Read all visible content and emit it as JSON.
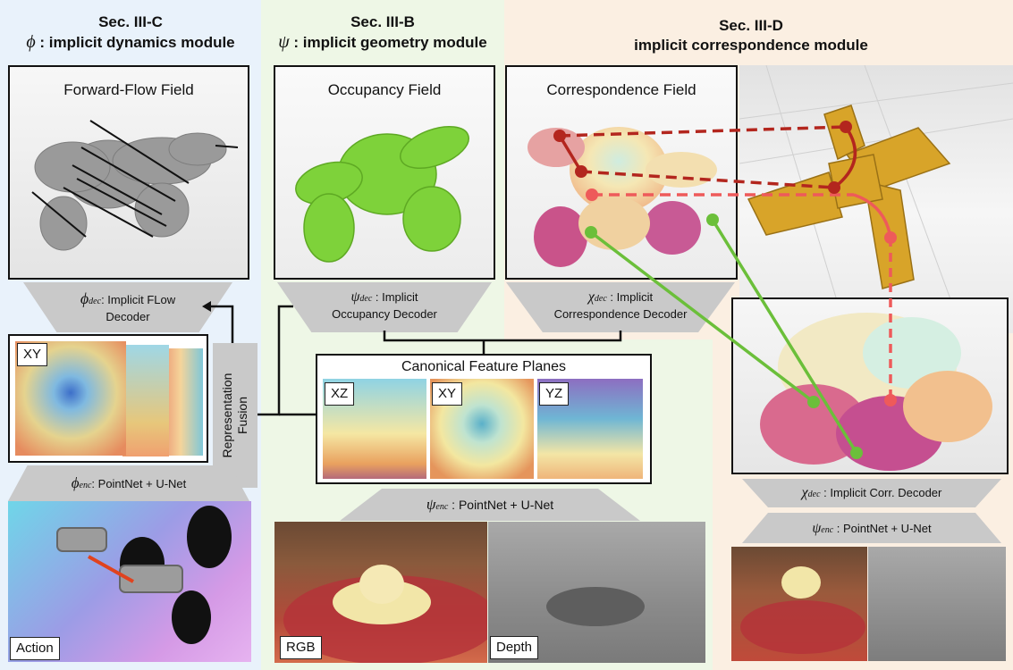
{
  "sections": {
    "dynamics": {
      "title": "Sec. III-C",
      "symbol": "ϕ",
      "subtitle": " : implicit dynamics module",
      "panel_color": "#e9f2fb"
    },
    "geometry": {
      "title": "Sec. III-B",
      "symbol": "ψ",
      "subtitle": " : implicit geometry module",
      "panel_color": "#eef7e6"
    },
    "correspondence": {
      "title": "Sec. III-D",
      "subtitle": "implicit correspondence module",
      "panel_color": "#fbefe2"
    }
  },
  "fields": {
    "forward_flow": "Forward-Flow Field",
    "occupancy": "Occupancy Field",
    "correspondence": "Correspondence Field"
  },
  "decoders": {
    "flow_symbol": "ϕ",
    "flow_sub": "dec",
    "flow_line1": ": Implicit FLow",
    "flow_line2": "Decoder",
    "occ_symbol": "ψ",
    "occ_sub": "dec",
    "occ_line1": " : Implicit",
    "occ_line2": "Occupancy Decoder",
    "corr_symbol": "χ",
    "corr_sub": "dec",
    "corr_line1": " : Implicit",
    "corr_line2": "Correspondence Decoder",
    "corr2_symbol": "χ",
    "corr2_sub": "dec",
    "corr2_text": " : Implicit Corr. Decoder"
  },
  "encoders": {
    "dyn_symbol": "ϕ",
    "dyn_sub": "enc",
    "dyn_text": ": PointNet + U-Net",
    "geo_symbol": "ψ",
    "geo_sub": "enc",
    "geo_text": " : PointNet + U-Net",
    "corr_symbol": "ψ",
    "corr_sub": "enc",
    "corr_text": " : PointNet + U-Net"
  },
  "fusion": {
    "line1": "Representation",
    "line2": "Fusion"
  },
  "planes": {
    "title": "Canonical Feature Planes",
    "xz": "XZ",
    "xy": "XY",
    "yz": "YZ",
    "dyn_xy": "XY"
  },
  "inputs": {
    "action": "Action",
    "rgb": "RGB",
    "depth": "Depth"
  },
  "colors": {
    "occupancy_green": "#7ed23a",
    "flow_gray": "#9a9a9a",
    "gold": "#d8a429",
    "dark_red": "#b3261e",
    "light_red": "#ee5a5a",
    "match_green": "#6bbf3a"
  }
}
